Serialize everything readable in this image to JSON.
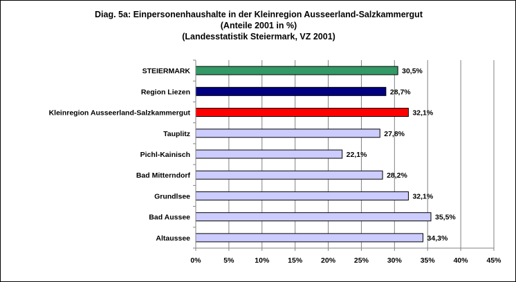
{
  "chart_data": {
    "type": "bar",
    "orientation": "horizontal",
    "title_lines": [
      "Diag. 5a: Einpersonenhaushalte  in der Kleinregion Ausseerland-Salzkammergut",
      "(Anteile 2001 in %)",
      "(Landesstatistik  Steiermark,  VZ 2001)"
    ],
    "categories": [
      "STEIERMARK",
      "Region Liezen",
      "Kleinregion Ausseerland-Salzkammergut",
      "Tauplitz",
      "Pichl-Kainisch",
      "Bad Mitterndorf",
      "Grundlsee",
      "Bad Aussee",
      "Altaussee"
    ],
    "values": [
      30.5,
      28.7,
      32.1,
      27.8,
      22.1,
      28.2,
      32.1,
      35.5,
      34.3
    ],
    "value_labels": [
      "30,5%",
      "28,7%",
      "32,1%",
      "27,8%",
      "22,1%",
      "28,2%",
      "32,1%",
      "35,5%",
      "34,3%"
    ],
    "bar_colors": [
      "#339966",
      "#000080",
      "#ff0000",
      "#ccccff",
      "#ccccff",
      "#ccccff",
      "#ccccff",
      "#ccccff",
      "#ccccff"
    ],
    "x_ticks": [
      0,
      5,
      10,
      15,
      20,
      25,
      30,
      35,
      40,
      45
    ],
    "x_tick_labels": [
      "0%",
      "5%",
      "10%",
      "15%",
      "20%",
      "25%",
      "30%",
      "35%",
      "40%",
      "45%"
    ],
    "xlim": [
      0,
      45
    ],
    "grid": "vertical"
  }
}
